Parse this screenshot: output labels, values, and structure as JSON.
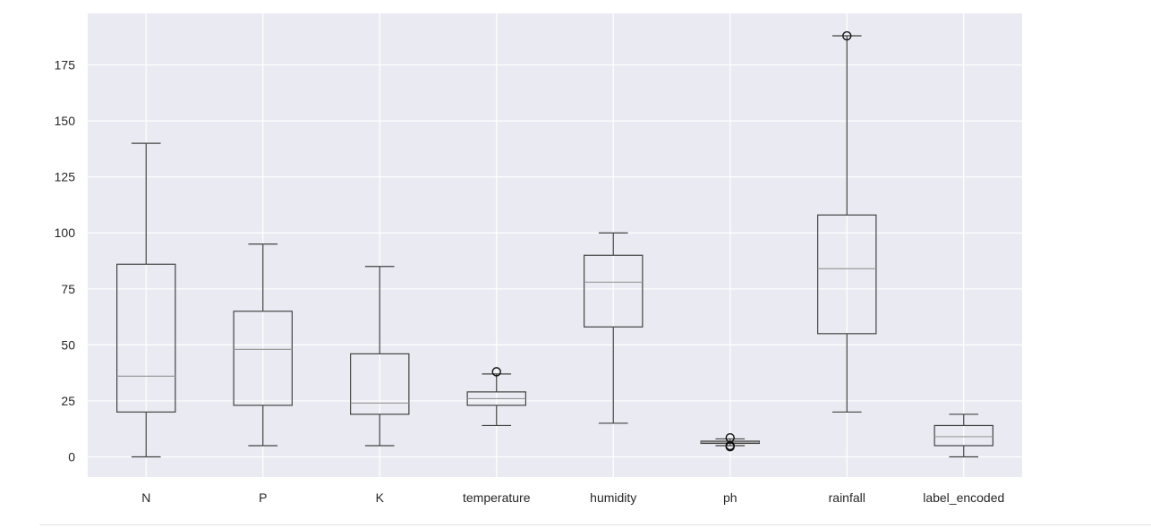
{
  "chart_data": {
    "type": "boxplot",
    "title": "",
    "xlabel": "",
    "ylabel": "",
    "ylim": [
      -9,
      198
    ],
    "y_ticks": [
      0,
      25,
      50,
      75,
      100,
      125,
      150,
      175
    ],
    "y_tick_labels": [
      "0",
      "25",
      "50",
      "75",
      "100",
      "125",
      "150",
      "175"
    ],
    "grid": true,
    "categories": [
      "N",
      "P",
      "K",
      "temperature",
      "humidity",
      "ph",
      "rainfall",
      "label_encoded"
    ],
    "boxes": [
      {
        "label": "N",
        "whisker_low": 0,
        "q1": 20,
        "median": 36,
        "q3": 86,
        "whisker_high": 140,
        "outliers": []
      },
      {
        "label": "P",
        "whisker_low": 5,
        "q1": 23,
        "median": 48,
        "q3": 65,
        "whisker_high": 95,
        "outliers": []
      },
      {
        "label": "K",
        "whisker_low": 5,
        "q1": 19,
        "median": 24,
        "q3": 46,
        "whisker_high": 85,
        "outliers": []
      },
      {
        "label": "temperature",
        "whisker_low": 14,
        "q1": 23,
        "median": 26,
        "q3": 29,
        "whisker_high": 37,
        "outliers": [
          38
        ]
      },
      {
        "label": "humidity",
        "whisker_low": 15,
        "q1": 58,
        "median": 78,
        "q3": 90,
        "whisker_high": 100,
        "outliers": []
      },
      {
        "label": "ph",
        "whisker_low": 5,
        "q1": 6,
        "median": 6.5,
        "q3": 7,
        "whisker_high": 8,
        "outliers": [
          4.5,
          5.0,
          8.5
        ]
      },
      {
        "label": "rainfall",
        "whisker_low": 20,
        "q1": 55,
        "median": 84,
        "q3": 108,
        "whisker_high": 188,
        "outliers": [
          188
        ]
      },
      {
        "label": "label_encoded",
        "whisker_low": 0,
        "q1": 5,
        "median": 9,
        "q3": 14,
        "whisker_high": 19,
        "outliers": []
      }
    ],
    "colors": {
      "background": "#eaeaf2",
      "grid": "#ffffff",
      "box": "#444444",
      "median": "#9a9a9a",
      "text": "#262626"
    }
  }
}
